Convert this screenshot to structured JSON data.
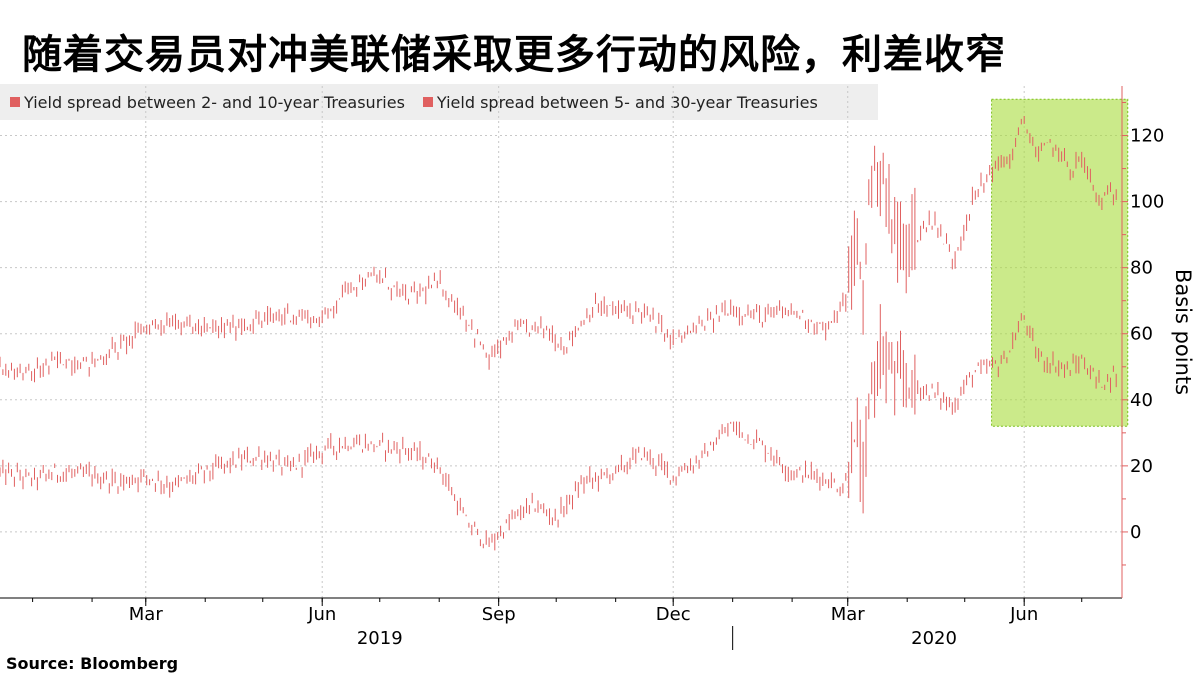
{
  "title": "随着交易员对冲美联储采取更多行动的风险，利差收窄",
  "source": "Source:  Bloomberg",
  "chart_data": {
    "type": "line",
    "title": "随着交易员对冲美联储采取更多行动的风险，利差收窄",
    "ylabel": "Basis points",
    "ylim": [
      -20,
      135
    ],
    "yticks": [
      0,
      20,
      40,
      60,
      80,
      100,
      120
    ],
    "x_range": [
      "2018-12-15",
      "2020-07-22"
    ],
    "x_tick_labels": [
      {
        "date": "2019-03-01",
        "label": "Mar"
      },
      {
        "date": "2019-06-01",
        "label": "Jun"
      },
      {
        "date": "2019-09-01",
        "label": "Sep"
      },
      {
        "date": "2019-12-01",
        "label": "Dec"
      },
      {
        "date": "2020-03-01",
        "label": "Mar"
      },
      {
        "date": "2020-06-01",
        "label": "Jun"
      }
    ],
    "year_labels": [
      {
        "date": "2019-07-01",
        "label": "2019"
      },
      {
        "date": "2020-04-15",
        "label": "2020"
      }
    ],
    "grid": true,
    "highlight": {
      "x_start": "2020-05-15",
      "x_end": "2020-07-25",
      "y_low": 32,
      "y_high": 131,
      "color": "#a8dc3c"
    },
    "series": [
      {
        "name": "Yield spread between 2- and 10-year Treasuries",
        "color": "#e06060",
        "points": [
          [
            "2018-12-15",
            18
          ],
          [
            "2019-01-01",
            16
          ],
          [
            "2019-01-15",
            18
          ],
          [
            "2019-02-01",
            17
          ],
          [
            "2019-02-15",
            15
          ],
          [
            "2019-03-01",
            17
          ],
          [
            "2019-03-15",
            14
          ],
          [
            "2019-04-01",
            18
          ],
          [
            "2019-04-15",
            21
          ],
          [
            "2019-05-01",
            23
          ],
          [
            "2019-05-15",
            19
          ],
          [
            "2019-06-01",
            25
          ],
          [
            "2019-06-15",
            27
          ],
          [
            "2019-07-01",
            26
          ],
          [
            "2019-07-15",
            25
          ],
          [
            "2019-08-01",
            20
          ],
          [
            "2019-08-15",
            3
          ],
          [
            "2019-08-27",
            -4
          ],
          [
            "2019-09-10",
            5
          ],
          [
            "2019-09-20",
            8
          ],
          [
            "2019-10-01",
            4
          ],
          [
            "2019-10-15",
            15
          ],
          [
            "2019-11-01",
            18
          ],
          [
            "2019-11-15",
            24
          ],
          [
            "2019-12-01",
            17
          ],
          [
            "2019-12-15",
            22
          ],
          [
            "2019-12-31",
            32
          ],
          [
            "2020-01-15",
            27
          ],
          [
            "2020-02-01",
            18
          ],
          [
            "2020-02-15",
            17
          ],
          [
            "2020-02-28",
            13
          ],
          [
            "2020-03-06",
            30
          ],
          [
            "2020-03-09",
            12
          ],
          [
            "2020-03-12",
            40
          ],
          [
            "2020-03-18",
            55
          ],
          [
            "2020-03-25",
            48
          ],
          [
            "2020-04-01",
            45
          ],
          [
            "2020-04-15",
            42
          ],
          [
            "2020-04-25",
            38
          ],
          [
            "2020-05-05",
            48
          ],
          [
            "2020-05-15",
            50
          ],
          [
            "2020-05-22",
            52
          ],
          [
            "2020-06-01",
            65
          ],
          [
            "2020-06-08",
            53
          ],
          [
            "2020-06-15",
            51
          ],
          [
            "2020-06-25",
            49
          ],
          [
            "2020-07-01",
            52
          ],
          [
            "2020-07-10",
            45
          ],
          [
            "2020-07-20",
            48
          ]
        ]
      },
      {
        "name": "Yield spread between 5- and 30-year Treasuries",
        "color": "#e06060",
        "points": [
          [
            "2018-12-15",
            50
          ],
          [
            "2019-01-01",
            48
          ],
          [
            "2019-01-15",
            52
          ],
          [
            "2019-02-01",
            51
          ],
          [
            "2019-02-15",
            56
          ],
          [
            "2019-03-01",
            62
          ],
          [
            "2019-03-15",
            64
          ],
          [
            "2019-04-01",
            61
          ],
          [
            "2019-04-15",
            62
          ],
          [
            "2019-05-01",
            64
          ],
          [
            "2019-05-15",
            66
          ],
          [
            "2019-06-01",
            64
          ],
          [
            "2019-06-15",
            75
          ],
          [
            "2019-07-01",
            77
          ],
          [
            "2019-07-15",
            71
          ],
          [
            "2019-08-01",
            75
          ],
          [
            "2019-08-15",
            65
          ],
          [
            "2019-08-27",
            52
          ],
          [
            "2019-09-10",
            61
          ],
          [
            "2019-09-25",
            62
          ],
          [
            "2019-10-05",
            56
          ],
          [
            "2019-10-20",
            68
          ],
          [
            "2019-11-01",
            67
          ],
          [
            "2019-11-15",
            67
          ],
          [
            "2019-12-01",
            58
          ],
          [
            "2019-12-15",
            62
          ],
          [
            "2019-12-31",
            68
          ],
          [
            "2020-01-15",
            65
          ],
          [
            "2020-02-01",
            67
          ],
          [
            "2020-02-20",
            61
          ],
          [
            "2020-03-01",
            72
          ],
          [
            "2020-03-06",
            88
          ],
          [
            "2020-03-09",
            70
          ],
          [
            "2020-03-12",
            105
          ],
          [
            "2020-03-18",
            110
          ],
          [
            "2020-03-25",
            90
          ],
          [
            "2020-04-01",
            87
          ],
          [
            "2020-04-15",
            95
          ],
          [
            "2020-04-25",
            82
          ],
          [
            "2020-05-05",
            100
          ],
          [
            "2020-05-15",
            110
          ],
          [
            "2020-05-25",
            113
          ],
          [
            "2020-06-01",
            125
          ],
          [
            "2020-06-08",
            113
          ],
          [
            "2020-06-15",
            118
          ],
          [
            "2020-06-25",
            110
          ],
          [
            "2020-07-01",
            113
          ],
          [
            "2020-07-10",
            100
          ],
          [
            "2020-07-20",
            103
          ]
        ]
      }
    ]
  }
}
